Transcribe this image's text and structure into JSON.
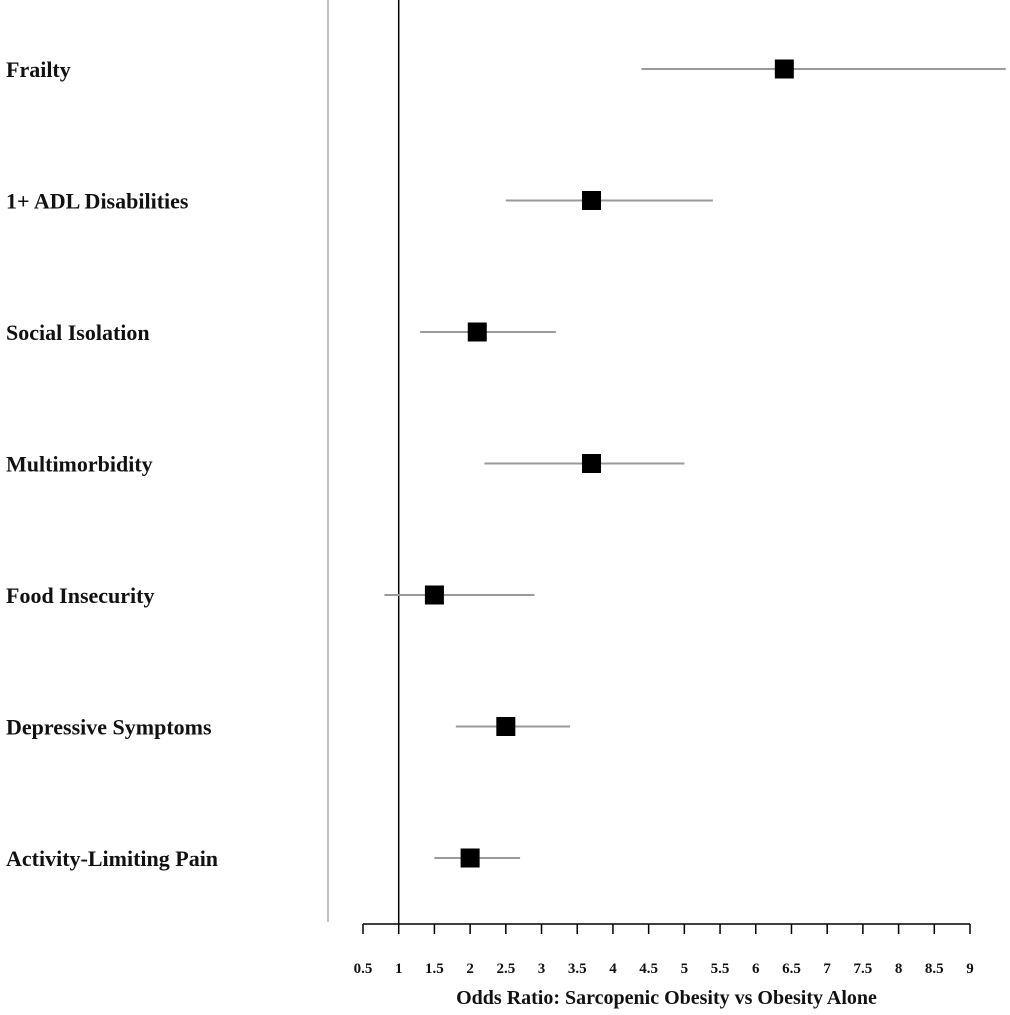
{
  "chart_data": {
    "type": "forest",
    "xlabel": "Odds Ratio: Sarcopenic Obesity vs Obesity Alone",
    "xlim": [
      0.5,
      9
    ],
    "reference_line": 1,
    "x_ticks": [
      "0.5",
      "1",
      "1.5",
      "2",
      "2.5",
      "3",
      "3.5",
      "4",
      "4.5",
      "5",
      "5.5",
      "6",
      "6.5",
      "7",
      "7.5",
      "8",
      "8.5",
      "9"
    ],
    "rows": [
      {
        "label": "Frailty",
        "or": 6.4,
        "ci_low": 4.4,
        "ci_high": 9.5
      },
      {
        "label": "1+ ADL Disabilities",
        "or": 3.7,
        "ci_low": 2.5,
        "ci_high": 5.4
      },
      {
        "label": "Social Isolation",
        "or": 2.1,
        "ci_low": 1.3,
        "ci_high": 3.2
      },
      {
        "label": "Multimorbidity",
        "or": 3.7,
        "ci_low": 2.2,
        "ci_high": 5.0
      },
      {
        "label": "Food Insecurity",
        "or": 1.5,
        "ci_low": 0.8,
        "ci_high": 2.9
      },
      {
        "label": "Depressive Symptoms",
        "or": 2.5,
        "ci_low": 1.8,
        "ci_high": 3.4
      },
      {
        "label": "Activity-Limiting Pain",
        "or": 2.0,
        "ci_low": 1.5,
        "ci_high": 2.7
      }
    ],
    "colors": {
      "marker": "#000000",
      "ci_line": "#9a9a9a",
      "reference_line": "#000000",
      "axis": "#000000",
      "separator": "#b0b0b0"
    }
  }
}
